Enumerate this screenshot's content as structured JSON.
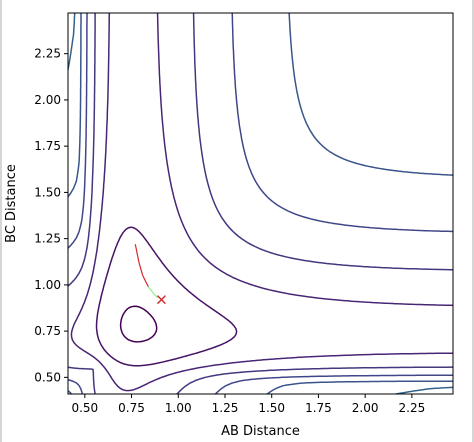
{
  "chart_data": {
    "type": "contour",
    "title": "",
    "xlabel": "AB Distance",
    "ylabel": "BC Distance",
    "xlim": [
      0.41,
      2.47
    ],
    "ylim": [
      0.41,
      2.47
    ],
    "x_ticks": [
      "0.50",
      "0.75",
      "1.00",
      "1.25",
      "1.50",
      "1.75",
      "2.00",
      "2.25"
    ],
    "y_ticks": [
      "0.50",
      "0.75",
      "1.00",
      "1.25",
      "1.50",
      "1.75",
      "2.00",
      "2.25"
    ],
    "x_tick_values": [
      0.5,
      0.75,
      1.0,
      1.25,
      1.5,
      1.75,
      2.0,
      2.25
    ],
    "y_tick_values": [
      0.5,
      0.75,
      1.0,
      1.25,
      1.5,
      1.75,
      2.0,
      2.25
    ],
    "colormap": "viridis",
    "contour_level_count": 20,
    "grid": false,
    "legend": "none",
    "trajectory": {
      "color_start": "#d62728",
      "color_end": "#90ee90",
      "points": [
        [
          0.77,
          1.22
        ],
        [
          0.79,
          1.12
        ],
        [
          0.81,
          1.05
        ],
        [
          0.84,
          0.99
        ],
        [
          0.87,
          0.95
        ],
        [
          0.89,
          0.93
        ]
      ]
    },
    "marker": {
      "symbol": "x",
      "color": "#d62728",
      "x": 0.91,
      "y": 0.92
    }
  }
}
